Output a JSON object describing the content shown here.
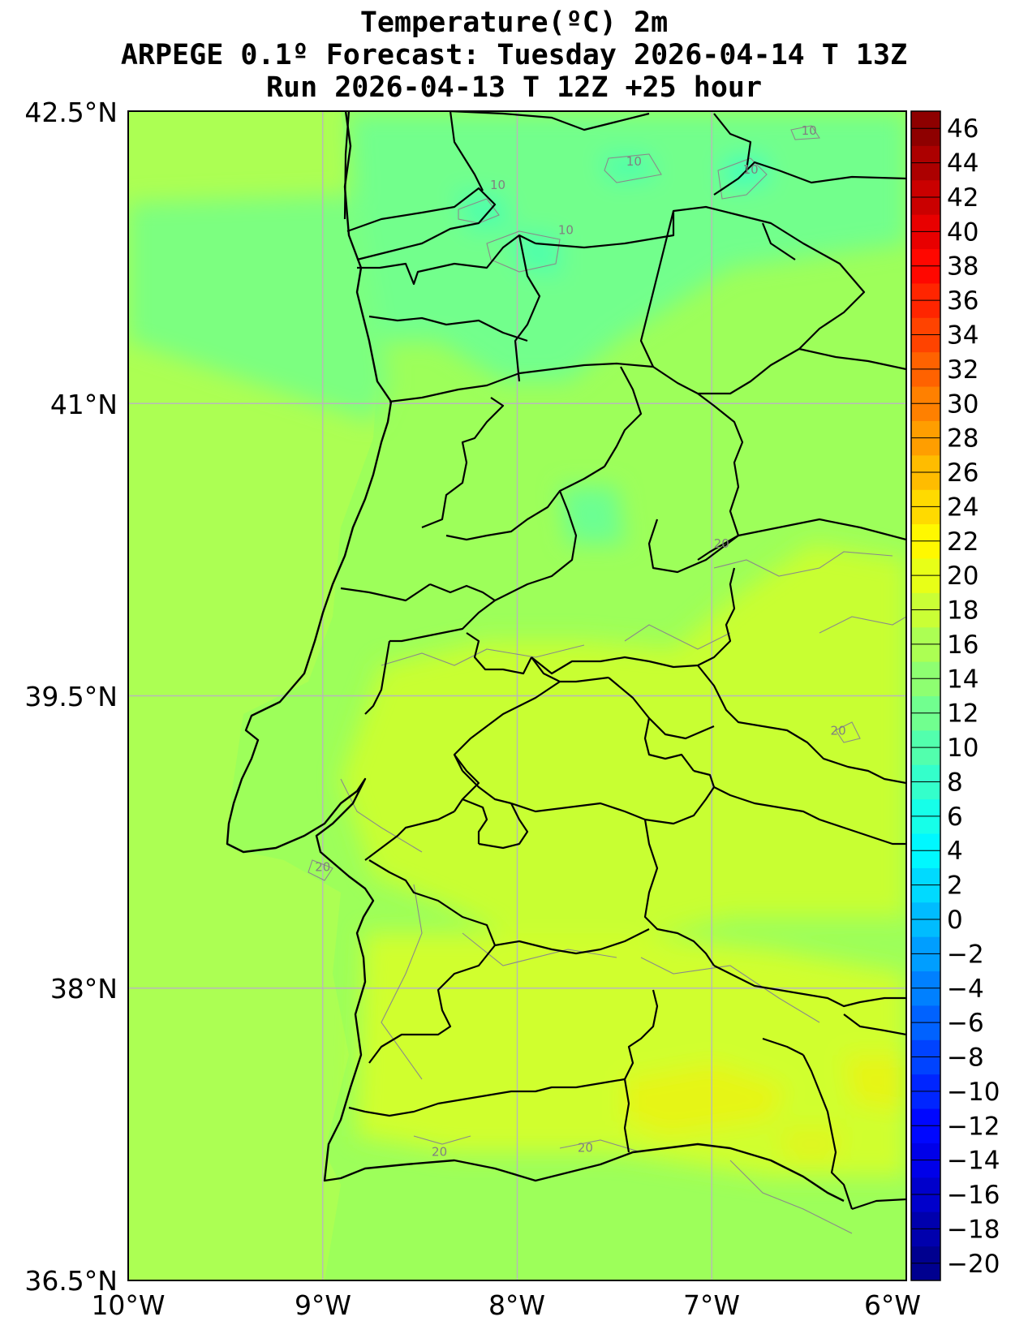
{
  "title": {
    "line1": "Temperature(ºC) 2m",
    "line2": "ARPEGE 0.1º Forecast: Tuesday 2026-04-14 T 13Z",
    "line3": "Run 2026-04-13 T 12Z +25 hour"
  },
  "map": {
    "lon_range": [
      -10,
      -6
    ],
    "lat_range": [
      36.5,
      42.5
    ],
    "lon_ticks": [
      {
        "value": -10,
        "label": "10°W"
      },
      {
        "value": -9,
        "label": "9°W"
      },
      {
        "value": -8,
        "label": "8°W"
      },
      {
        "value": -7,
        "label": "7°W"
      },
      {
        "value": -6,
        "label": "6°W"
      }
    ],
    "lat_ticks": [
      {
        "value": 42.5,
        "label": "42.5°N"
      },
      {
        "value": 41,
        "label": "41°N"
      },
      {
        "value": 39.5,
        "label": "39.5°N"
      },
      {
        "value": 38,
        "label": "38°N"
      },
      {
        "value": 36.5,
        "label": "36.5°N"
      }
    ],
    "ocean_temperature_c": 16,
    "contour_labels": [
      {
        "text": "10",
        "lon": -7.4,
        "lat": 42.22
      },
      {
        "text": "10",
        "lon": -8.1,
        "lat": 42.1
      },
      {
        "text": "10",
        "lon": -7.75,
        "lat": 41.87
      },
      {
        "text": "10",
        "lon": -6.8,
        "lat": 42.18
      },
      {
        "text": "10",
        "lon": -6.5,
        "lat": 42.38
      },
      {
        "text": "20",
        "lon": -6.95,
        "lat": 40.26
      },
      {
        "text": "20",
        "lon": -6.35,
        "lat": 39.3
      },
      {
        "text": "20",
        "lon": -9.0,
        "lat": 38.6
      },
      {
        "text": "20",
        "lon": -8.4,
        "lat": 37.14
      },
      {
        "text": "20",
        "lon": -7.65,
        "lat": 37.16
      }
    ]
  },
  "colorbar": {
    "min": -21,
    "max": 47,
    "step": 2,
    "ticks": [
      "46",
      "44",
      "42",
      "40",
      "38",
      "36",
      "34",
      "32",
      "30",
      "28",
      "26",
      "24",
      "22",
      "20",
      "18",
      "16",
      "14",
      "12",
      "10",
      "8",
      "6",
      "4",
      "2",
      "0",
      "−2",
      "−4",
      "−6",
      "−8",
      "−10",
      "−12",
      "−14",
      "−16",
      "−18",
      "−20"
    ],
    "tick_values": [
      46,
      44,
      42,
      40,
      38,
      36,
      34,
      32,
      30,
      28,
      26,
      24,
      22,
      20,
      18,
      16,
      14,
      12,
      10,
      8,
      6,
      4,
      2,
      0,
      -2,
      -4,
      -6,
      -8,
      -10,
      -12,
      -14,
      -16,
      -18,
      -20
    ],
    "colormap": "jet"
  }
}
